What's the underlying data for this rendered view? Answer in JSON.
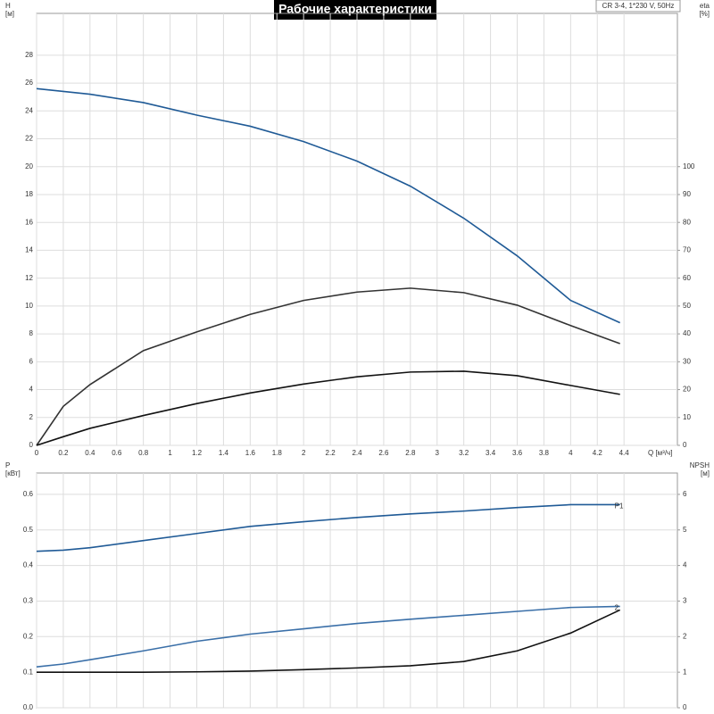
{
  "chart_data": [
    {
      "type": "line",
      "title": "Рабочие характеристики",
      "annotation": "CR 3-4, 1*230 V, 50Hz",
      "y_label": "H",
      "y_unit": "[м]",
      "y2_label": "eta",
      "y2_unit": "[%]",
      "x_label": "Q [м³/ч]",
      "grid": true,
      "xlim": [
        0,
        4.8
      ],
      "xticks": [
        0,
        0.2,
        0.4,
        0.6,
        0.8,
        1,
        1.2,
        1.4,
        1.6,
        1.8,
        2,
        2.2,
        2.4,
        2.6,
        2.8,
        3,
        3.2,
        3.4,
        3.6,
        3.8,
        4,
        4.2,
        4.4
      ],
      "ylim": [
        0,
        31
      ],
      "yticks": [
        0,
        2,
        4,
        6,
        8,
        10,
        12,
        14,
        16,
        18,
        20,
        22,
        24,
        26,
        28
      ],
      "y2lim": [
        0,
        155
      ],
      "y2ticks": [
        0,
        10,
        20,
        30,
        40,
        50,
        60,
        70,
        80,
        90,
        100
      ],
      "x": [
        0,
        0.2,
        0.4,
        0.8,
        1.2,
        1.6,
        2.0,
        2.4,
        2.8,
        3.2,
        3.6,
        4.0,
        4.37
      ],
      "series": [
        {
          "color": "#1f5a96",
          "values": [
            25.6,
            25.4,
            25.2,
            24.6,
            23.7,
            22.9,
            21.8,
            20.4,
            18.6,
            16.3,
            13.6,
            10.4,
            8.8
          ]
        },
        {
          "color": "#333333",
          "axis": "y2",
          "values": [
            0,
            14,
            21.8,
            34,
            40.7,
            47,
            52,
            55,
            56.4,
            54.8,
            50.3,
            43,
            36.5
          ]
        },
        {
          "color": "#111111",
          "axis": "y2",
          "values": [
            0,
            3.1,
            6.1,
            10.7,
            15,
            18.8,
            22,
            24.6,
            26.3,
            26.6,
            25,
            21.5,
            18.3
          ]
        }
      ]
    },
    {
      "type": "line",
      "y_label": "P",
      "y_unit": "[кВт]",
      "y2_label": "NPSH",
      "y2_unit": "[м]",
      "grid": true,
      "xlim": [
        0,
        4.8
      ],
      "ylim": [
        0,
        0.66
      ],
      "yticks": [
        {
          "value": 0,
          "label": "0.0"
        },
        0.1,
        0.2,
        0.3,
        0.4,
        0.5,
        0.6
      ],
      "y2lim": [
        0,
        6.6
      ],
      "y2ticks": [
        0,
        1,
        2,
        3,
        4,
        5,
        6
      ],
      "x": [
        0,
        0.2,
        0.4,
        0.8,
        1.2,
        1.6,
        2.0,
        2.4,
        2.8,
        3.2,
        3.6,
        4.0,
        4.37
      ],
      "series": [
        {
          "name": "P1",
          "color": "#1f5a96",
          "values": [
            0.44,
            0.443,
            0.45,
            0.47,
            0.49,
            0.51,
            0.523,
            0.535,
            0.545,
            0.553,
            0.563,
            0.571,
            0.571
          ]
        },
        {
          "name": "2",
          "color": "#3a6fa8",
          "values": [
            0.115,
            0.123,
            0.135,
            0.16,
            0.187,
            0.207,
            0.222,
            0.237,
            0.249,
            0.26,
            0.271,
            0.282,
            0.285
          ]
        },
        {
          "color": "#111111",
          "axis": "y2",
          "values": [
            1.0,
            1.0,
            1.0,
            1.0,
            1.01,
            1.03,
            1.07,
            1.12,
            1.18,
            1.3,
            1.6,
            2.1,
            2.75
          ]
        }
      ]
    }
  ]
}
